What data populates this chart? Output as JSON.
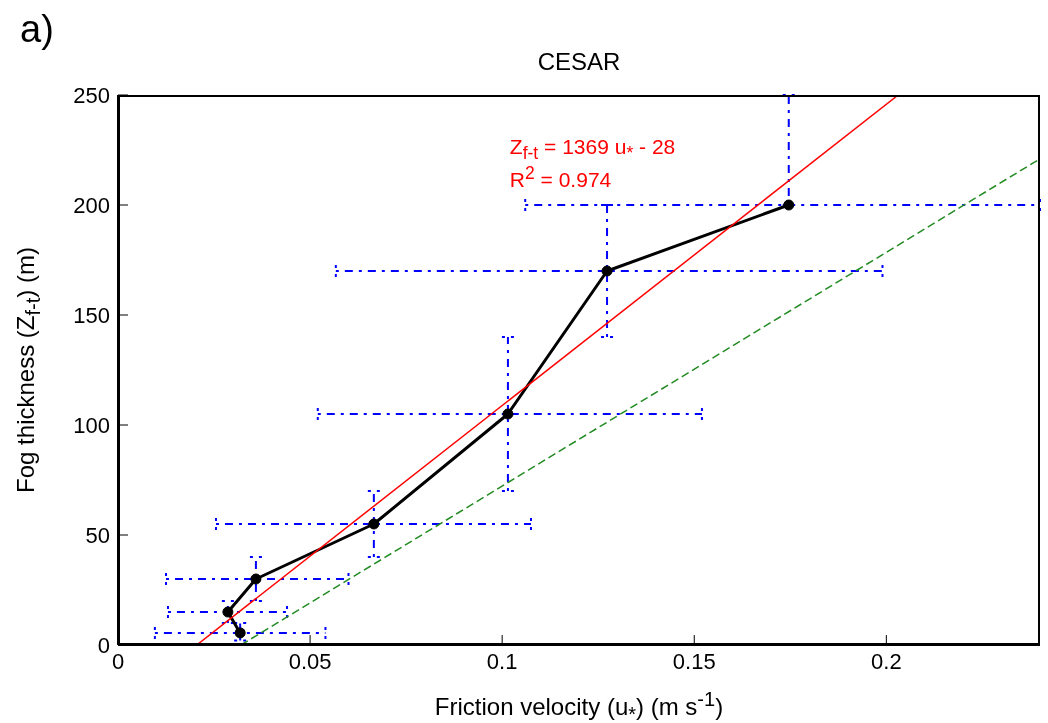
{
  "chart_data": {
    "type": "line",
    "title": "CESAR",
    "xlabel": "Friction velocity (u$_{*}$) (m s$^{-1}$)",
    "ylabel": "Fog thickness (Z$_{f-t}$) (m)",
    "annotations": [
      "a)",
      "Z$_{f-t}$ = 1369 u$_{*}$ - 28",
      "R$^{2}$ = 0.974"
    ],
    "xlim": [
      0,
      0.24
    ],
    "xticks": [
      0,
      0.05,
      0.1,
      0.15,
      0.2
    ],
    "ylim": [
      0,
      250
    ],
    "yticks": [
      0,
      50,
      100,
      150,
      200,
      250
    ],
    "series": [
      {
        "color": "#000000",
        "marker": "circle",
        "line_style": "solid",
        "x": [
          0.0318,
          0.0286,
          0.0359,
          0.0666,
          0.1015,
          0.1273,
          0.1746
        ],
        "values": [
          5.5,
          15,
          30,
          55,
          105,
          170,
          200
        ],
        "errors": [
          [
            2,
            10
          ],
          [
            10,
            20
          ],
          [
            20,
            40
          ],
          [
            40,
            70
          ],
          [
            70,
            140
          ],
          [
            140,
            200
          ],
          [
            200,
            250
          ]
        ],
        "xerrors": [
          [
            0.0096,
            0.054
          ],
          [
            0.013,
            0.044
          ],
          [
            0.0125,
            0.06
          ],
          [
            0.0255,
            0.1075
          ],
          [
            0.052,
            0.152
          ],
          [
            0.0567,
            0.199
          ],
          [
            0.106,
            0.24
          ]
        ]
      },
      {
        "color": "#ff0000",
        "marker": "none",
        "line_style": "solid",
        "x": [
          0.0205,
          0.2031
        ],
        "values": [
          0,
          250
        ]
      },
      {
        "color": "#228b22",
        "marker": "none",
        "line_style": "dashed",
        "x": [
          0.032,
          0.24
        ],
        "values": [
          0,
          221
        ]
      }
    ]
  }
}
